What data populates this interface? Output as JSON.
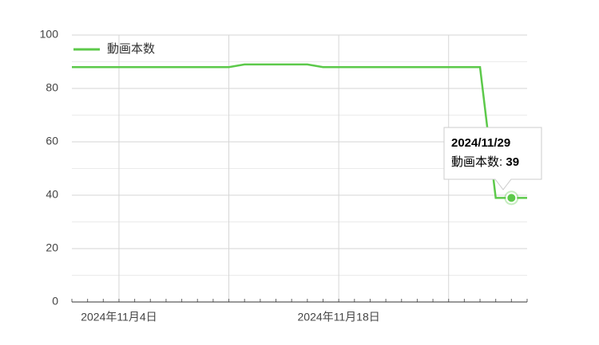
{
  "chart_data": {
    "type": "line",
    "categories": [
      null,
      null,
      null,
      "2024年11月4日",
      null,
      null,
      null,
      null,
      null,
      null,
      null,
      null,
      null,
      null,
      null,
      null,
      null,
      "2024年11月18日",
      null,
      null,
      null,
      null,
      null,
      null,
      null,
      null,
      null,
      null,
      null,
      null
    ],
    "series": [
      {
        "name": "動画本数",
        "color": "#5cc94a",
        "values": [
          88,
          88,
          88,
          88,
          88,
          88,
          88,
          88,
          88,
          88,
          88,
          89,
          89,
          89,
          89,
          89,
          88,
          88,
          88,
          88,
          88,
          88,
          88,
          88,
          88,
          88,
          88,
          39,
          39,
          39
        ]
      }
    ],
    "ylim": [
      0,
      100
    ],
    "yticks": [
      0,
      20,
      40,
      60,
      80,
      100
    ],
    "grid": true,
    "legend": "top-left",
    "tooltip": {
      "index": 28,
      "title": "2024/11/29",
      "label": "動画本数",
      "value": 39
    }
  }
}
